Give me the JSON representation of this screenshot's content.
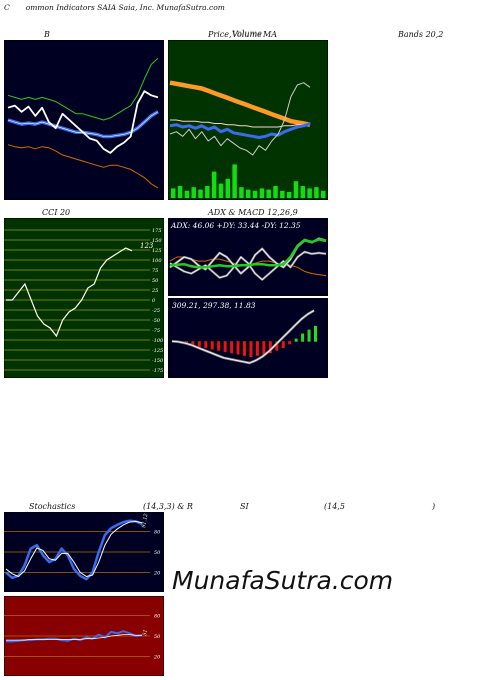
{
  "header": {
    "title_c": "C",
    "title_rest": "ommon  Indicators SAIA Saia,  Inc. MunafaSutra.com"
  },
  "titles": {
    "bollinger_b": "B",
    "price_volume": "Price,",
    "volume_word": "Volume",
    "overlay_word": "Volume",
    "ma_word": "MA",
    "bands": "Bands 20,2",
    "cci": "CCI 20",
    "adx_macd": "ADX  & MACD 12,26,9",
    "stoch_a": "Stochastics",
    "stoch_b": "(14,3,3) & R",
    "stoch_c": "SI",
    "stoch_d": "(14,5",
    "stoch_e": ")"
  },
  "labels": {
    "cci_value": "123",
    "adx_readout": "ADX: 46.06  +DY: 33.44  -DY: 12.35",
    "macd_readout": "309.21,  297.38,  11.83",
    "stoch_value": "91.12",
    "rsi_value": "51"
  },
  "watermark": "MunafaSutra.com",
  "colors": {
    "dark_panel": "#000022",
    "green_panel": "#003300",
    "rsi_panel": "#880000",
    "grid_orange": "#b26a00",
    "grid_olive": "#9a9a00",
    "blue": "#3a6cf0",
    "green_line": "#22cc22",
    "orange_line": "#d86a00"
  },
  "chart_data": [
    {
      "type": "line",
      "name_printed": "B",
      "series": [
        {
          "values": [
            72,
            74,
            68,
            73,
            64,
            72,
            58,
            52,
            66,
            60,
            54,
            48,
            42,
            40,
            32,
            28,
            34,
            38,
            44,
            76,
            88,
            84,
            82
          ]
        },
        {
          "values": [
            60,
            58,
            56,
            57,
            56,
            58,
            56,
            54,
            52,
            50,
            48,
            48,
            47,
            46,
            44,
            44,
            45,
            46,
            48,
            52,
            58,
            64,
            68
          ]
        },
        {
          "values": [
            84,
            82,
            80,
            82,
            80,
            82,
            80,
            78,
            74,
            70,
            66,
            66,
            64,
            62,
            60,
            62,
            66,
            70,
            74,
            84,
            100,
            114,
            120
          ]
        },
        {
          "values": [
            36,
            34,
            33,
            34,
            32,
            34,
            33,
            30,
            26,
            24,
            22,
            20,
            18,
            16,
            14,
            16,
            16,
            14,
            12,
            8,
            4,
            -2,
            -6
          ]
        }
      ],
      "ylim": [
        -10,
        130
      ]
    },
    {
      "type": "line",
      "name_printed": "Price, Volume MA",
      "series": [
        {
          "values": [
            92,
            91,
            90,
            89,
            88,
            87,
            85,
            83,
            81,
            79,
            77,
            75,
            73,
            71,
            69,
            67,
            65,
            63,
            61,
            59,
            58,
            57,
            56
          ]
        },
        {
          "values": [
            55,
            56,
            54,
            55,
            53,
            55,
            52,
            54,
            50,
            52,
            49,
            48,
            47,
            46,
            45,
            46,
            48,
            47,
            50,
            52,
            54,
            55,
            57
          ]
        },
        {
          "values": [
            60,
            60,
            59,
            59,
            59,
            58,
            58,
            57,
            57,
            56,
            56,
            55,
            55,
            54,
            54,
            54,
            54,
            54,
            55,
            55,
            56,
            56,
            57
          ]
        },
        {
          "values": [
            48,
            50,
            46,
            52,
            44,
            50,
            42,
            46,
            38,
            44,
            40,
            36,
            34,
            30,
            38,
            34,
            42,
            48,
            60,
            80,
            90,
            92,
            88
          ]
        }
      ],
      "volume": [
        8,
        10,
        6,
        9,
        7,
        10,
        22,
        12,
        16,
        28,
        9,
        7,
        6,
        8,
        7,
        10,
        6,
        5,
        14,
        10,
        8,
        9,
        6
      ],
      "ylim": [
        0,
        120
      ]
    },
    {
      "type": "line",
      "name_printed": "CCI 20",
      "series": [
        {
          "values": [
            0,
            0,
            20,
            40,
            0,
            -40,
            -60,
            -70,
            -90,
            -50,
            -30,
            -20,
            0,
            30,
            40,
            80,
            100,
            110,
            120,
            130,
            123
          ]
        }
      ],
      "ylim": [
        -175,
        175
      ],
      "ticks": [
        "175",
        "150",
        "125",
        "100",
        "75",
        "50",
        "25",
        "0",
        "-25",
        "-50",
        "-75",
        "-100",
        "-125",
        "-150",
        "-175"
      ]
    },
    {
      "type": "line",
      "name_printed": "ADX & MACD 12,26,9",
      "series": [
        {
          "values": [
            20,
            25,
            30,
            28,
            22,
            18,
            26,
            34,
            30,
            22,
            14,
            20,
            32,
            38,
            30,
            24,
            20,
            28,
            40,
            46,
            44,
            48,
            46
          ]
        },
        {
          "values": [
            24,
            20,
            16,
            14,
            18,
            22,
            16,
            10,
            12,
            20,
            30,
            24,
            14,
            8,
            14,
            20,
            26,
            20,
            30,
            35,
            33,
            34,
            33
          ]
        },
        {
          "values": [
            26,
            30,
            30,
            28,
            26,
            26,
            28,
            28,
            26,
            24,
            22,
            22,
            24,
            26,
            26,
            24,
            22,
            22,
            20,
            16,
            14,
            13,
            12
          ]
        }
      ],
      "ylim": [
        0,
        60
      ]
    },
    {
      "type": "bar",
      "name_printed": "MACD 309.21, 297.38, 11.83",
      "series": [
        {
          "values": [
            0,
            -2,
            -4,
            -6,
            -8,
            -10,
            -12,
            -14,
            -16,
            -18,
            -20,
            -22,
            -24,
            -22,
            -20,
            -18,
            -14,
            -10,
            -4,
            4,
            12,
            18,
            24
          ]
        },
        {
          "values": [
            0,
            -1,
            -3,
            -6,
            -10,
            -14,
            -18,
            -22,
            -26,
            -28,
            -30,
            -32,
            -34,
            -30,
            -24,
            -16,
            -6,
            4,
            14,
            24,
            34,
            42,
            48
          ]
        }
      ],
      "ylim": [
        -45,
        55
      ]
    },
    {
      "type": "line",
      "name_printed": "Stochastics (14,3,3)",
      "series": [
        {
          "values": [
            20,
            12,
            15,
            30,
            55,
            60,
            45,
            35,
            40,
            55,
            45,
            25,
            15,
            10,
            20,
            50,
            75,
            85,
            90,
            94,
            96,
            95,
            91
          ]
        },
        {
          "values": [
            25,
            18,
            14,
            22,
            40,
            56,
            52,
            40,
            38,
            48,
            48,
            35,
            20,
            14,
            16,
            35,
            60,
            76,
            84,
            90,
            94,
            95,
            93
          ]
        }
      ],
      "ylim": [
        0,
        100
      ],
      "ticks": [
        "80",
        "50",
        "20"
      ]
    },
    {
      "type": "line",
      "name_printed": "RSI (14,5)",
      "series": [
        {
          "values": [
            42,
            42,
            43,
            44,
            44,
            45,
            45,
            46,
            46,
            44,
            43,
            46,
            44,
            48,
            46,
            52,
            48,
            56,
            54,
            57,
            54,
            50,
            51
          ]
        },
        {
          "values": [
            44,
            44,
            44,
            44,
            45,
            45,
            45,
            45,
            45,
            45,
            45,
            45,
            45,
            46,
            46,
            47,
            48,
            50,
            51,
            52,
            52,
            51,
            51
          ]
        }
      ],
      "ylim": [
        0,
        100
      ],
      "ticks": [
        "80",
        "50",
        "20"
      ]
    }
  ]
}
